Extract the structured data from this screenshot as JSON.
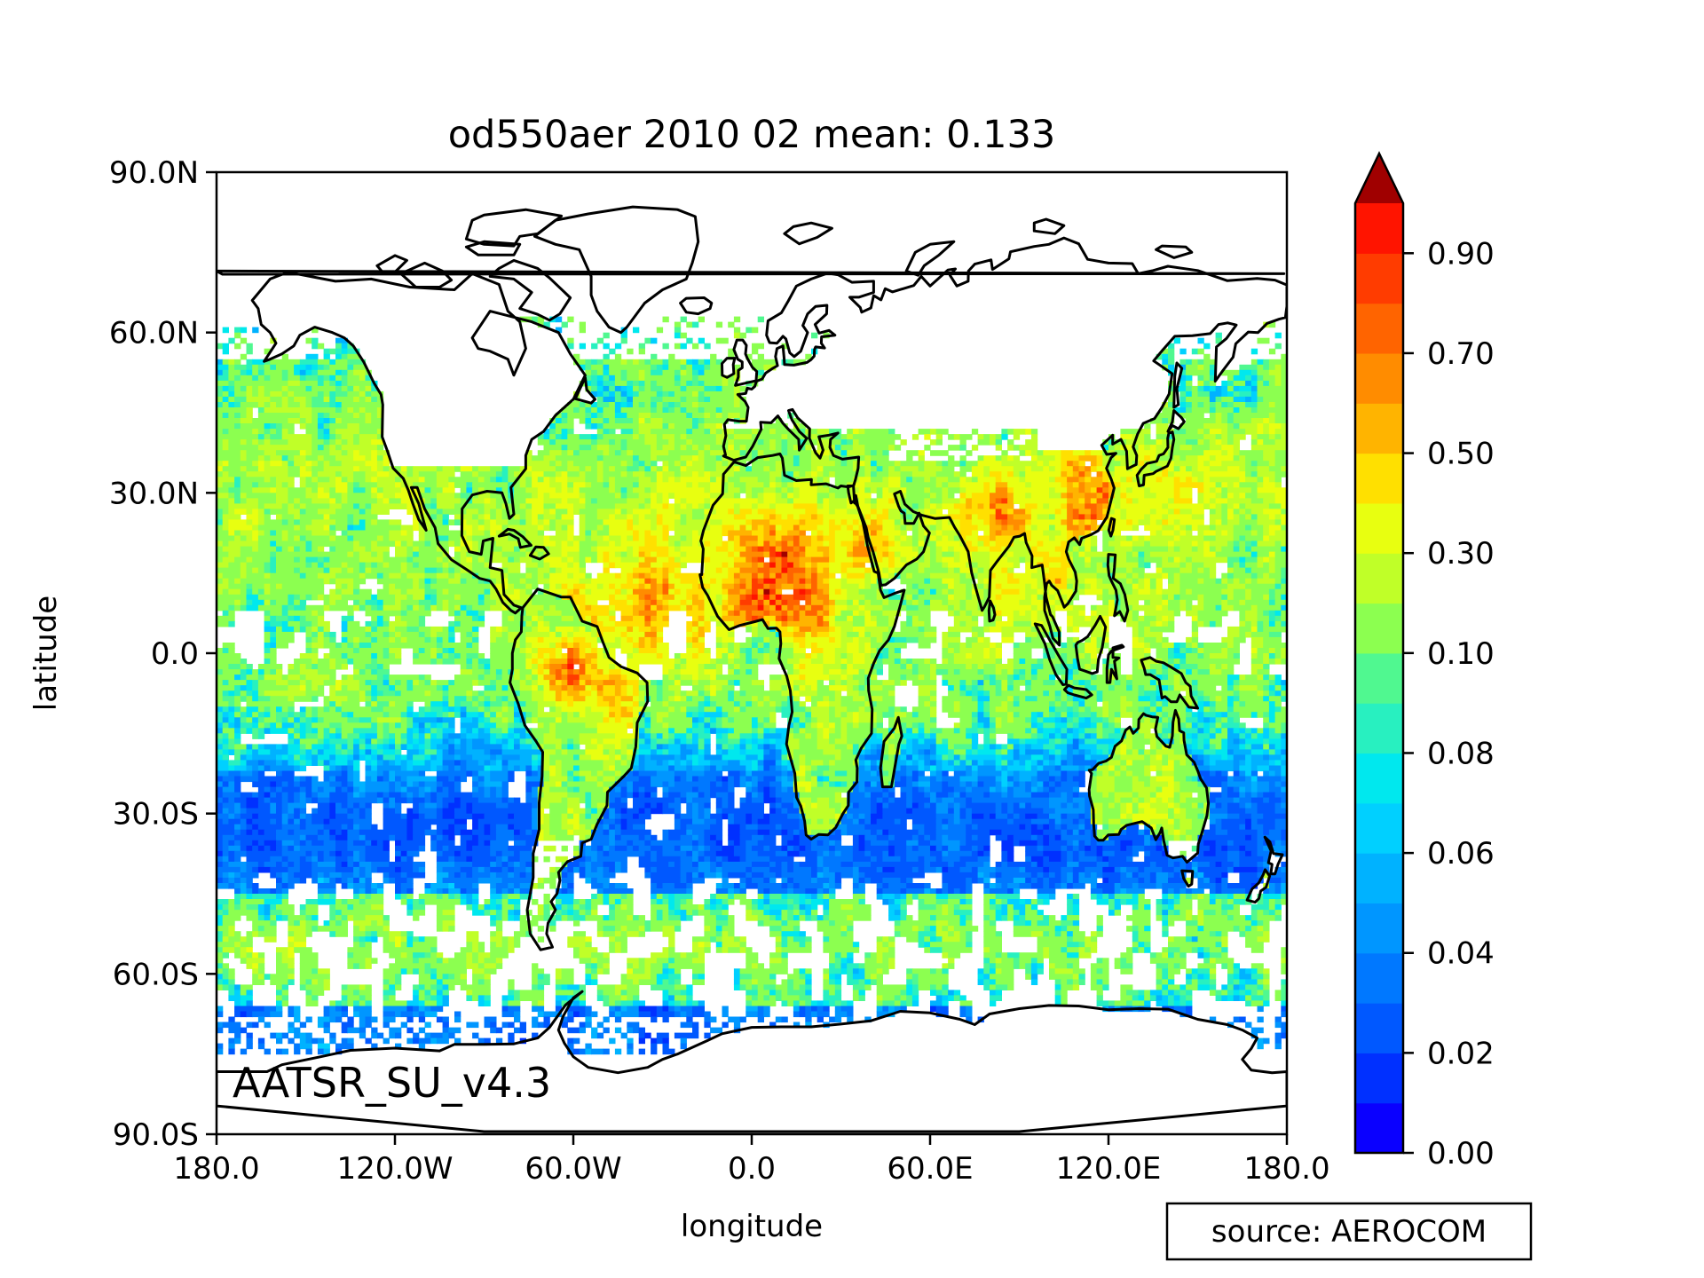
{
  "title": "od550aer 2010 02 mean:  0.133",
  "dataset_label": "AATSR_SU_v4.3",
  "source_label": "source: AEROCOM",
  "chart_data": {
    "type": "heatmap",
    "title": "od550aer 2010 02 mean:  0.133",
    "xlabel": "longitude",
    "ylabel": "latitude",
    "xlim": [
      -180,
      180
    ],
    "ylim": [
      -90,
      90
    ],
    "x_ticks": [
      {
        "value": -180,
        "label": "180.0"
      },
      {
        "value": -120,
        "label": "120.0W"
      },
      {
        "value": -60,
        "label": "60.0W"
      },
      {
        "value": 0,
        "label": "0.0"
      },
      {
        "value": 60,
        "label": "60.0E"
      },
      {
        "value": 120,
        "label": "120.0E"
      },
      {
        "value": 180,
        "label": "180.0"
      }
    ],
    "y_ticks": [
      {
        "value": 90,
        "label": "90.0N"
      },
      {
        "value": 60,
        "label": "60.0N"
      },
      {
        "value": 30,
        "label": "30.0N"
      },
      {
        "value": 0,
        "label": "0.0"
      },
      {
        "value": -30,
        "label": "30.0S"
      },
      {
        "value": -60,
        "label": "60.0S"
      },
      {
        "value": -90,
        "label": "90.0S"
      }
    ],
    "mean": 0.133,
    "colorbar": {
      "levels": [
        0.0,
        0.01,
        0.02,
        0.03,
        0.04,
        0.05,
        0.06,
        0.07,
        0.08,
        0.09,
        0.1,
        0.15,
        0.2,
        0.3,
        0.4,
        0.5,
        0.6,
        0.7,
        0.8,
        0.9
      ],
      "colors": [
        "#0a00ff",
        "#0030ff",
        "#0058ff",
        "#0078ff",
        "#0096ff",
        "#00b2ff",
        "#00d0ff",
        "#00e8ee",
        "#28f0c0",
        "#50f890",
        "#8cff50",
        "#c0ff28",
        "#e8ff10",
        "#ffe000",
        "#ffb400",
        "#ff8c00",
        "#ff6400",
        "#ff3c00",
        "#ff1400"
      ],
      "extend_color": "#a00000",
      "tick_labels": [
        "0.00",
        "0.02",
        "0.04",
        "0.06",
        "0.08",
        "0.10",
        "0.30",
        "0.50",
        "0.70",
        "0.90"
      ],
      "extend": "max"
    },
    "grid": false,
    "coastlines": true
  }
}
